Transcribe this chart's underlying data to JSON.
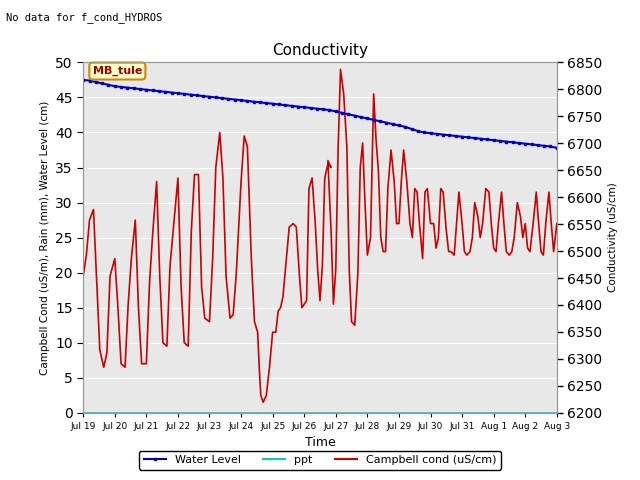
{
  "title": "Conductivity",
  "top_left_text": "No data for f_cond_HYDROS",
  "xlabel": "Time",
  "ylabel_left": "Campbell Cond (uS/m), Rain (mm), Water Level (cm)",
  "ylabel_right": "Conductivity (uS/cm)",
  "ylim_left": [
    0,
    50
  ],
  "ylim_right": [
    6200,
    6850
  ],
  "xtick_labels": [
    "Jul 19",
    "Jul 20",
    "Jul 21",
    "Jul 22",
    "Jul 23",
    "Jul 24",
    "Jul 25",
    "Jul 26",
    "Jul 27",
    "Jul 28",
    "Jul 29",
    "Jul 30",
    "Jul 31",
    "Aug 1",
    "Aug 2",
    "Aug 3"
  ],
  "annotation_box": "MB_tule",
  "annotation_box_color": "#ffffcc",
  "annotation_box_edge": "#cc8800",
  "legend_entries": [
    "Water Level",
    "ppt",
    "Campbell cond (uS/cm)"
  ],
  "legend_colors": [
    "#0000cc",
    "#00cccc",
    "#cc0000"
  ],
  "bg_color": "#e8e8e8",
  "water_level_x": [
    0,
    0.2,
    0.4,
    0.6,
    0.8,
    1.0,
    1.2,
    1.4,
    1.6,
    1.8,
    2.0,
    2.2,
    2.4,
    2.6,
    2.8,
    3.0,
    3.2,
    3.4,
    3.6,
    3.8,
    4.0,
    4.2,
    4.4,
    4.6,
    4.8,
    5.0,
    5.2,
    5.4,
    5.6,
    5.8,
    6.0,
    6.2,
    6.4,
    6.6,
    6.8,
    7.0,
    7.2,
    7.4,
    7.6,
    7.8,
    8.0,
    8.2,
    8.4,
    8.6,
    8.8,
    9.0,
    9.2,
    9.4,
    9.6,
    9.8,
    10.0,
    10.2,
    10.4,
    10.6,
    10.8,
    11.0,
    11.2,
    11.4,
    11.6,
    11.8,
    12.0,
    12.2,
    12.4,
    12.6,
    12.8,
    13.0,
    13.2,
    13.4,
    13.6,
    13.8,
    14.0,
    14.2,
    14.4,
    14.6,
    14.8,
    15.0
  ],
  "water_level_y": [
    47.5,
    47.4,
    47.2,
    47.0,
    46.8,
    46.6,
    46.5,
    46.4,
    46.3,
    46.2,
    46.1,
    46.0,
    45.9,
    45.8,
    45.7,
    45.6,
    45.5,
    45.4,
    45.3,
    45.2,
    45.1,
    45.0,
    44.9,
    44.8,
    44.7,
    44.6,
    44.5,
    44.4,
    44.3,
    44.2,
    44.1,
    44.0,
    43.9,
    43.8,
    43.7,
    43.6,
    43.5,
    43.4,
    43.3,
    43.2,
    43.0,
    42.8,
    42.6,
    42.4,
    42.2,
    42.0,
    41.8,
    41.6,
    41.4,
    41.2,
    41.0,
    40.8,
    40.5,
    40.2,
    40.0,
    39.9,
    39.8,
    39.7,
    39.6,
    39.5,
    39.4,
    39.3,
    39.2,
    39.1,
    39.0,
    38.9,
    38.8,
    38.7,
    38.6,
    38.5,
    38.4,
    38.3,
    38.2,
    38.1,
    38.0,
    37.8
  ],
  "campbell_cond_x": [
    0.0,
    0.2,
    0.4,
    0.65,
    0.85,
    1.05,
    1.3,
    1.5,
    1.7,
    2.0,
    2.2,
    2.4,
    2.65,
    2.85,
    3.05,
    3.3,
    3.5,
    3.7,
    4.0,
    4.2,
    4.4,
    4.65,
    4.85,
    5.05,
    5.3,
    5.5,
    5.7,
    6.0,
    6.2,
    6.4,
    6.65,
    6.85,
    7.05,
    7.3,
    7.5,
    7.7,
    8.0,
    8.2,
    8.4,
    8.65,
    8.85,
    9.05,
    9.3,
    9.5,
    9.7,
    10.0,
    10.2,
    10.4,
    10.65,
    10.85,
    11.05,
    11.15,
    11.25,
    11.4,
    11.6,
    11.8,
    12.0,
    12.2,
    12.35,
    12.5,
    12.65,
    12.85,
    13.05,
    13.3,
    13.5,
    13.7,
    13.85,
    14.0,
    14.15,
    14.3,
    14.5,
    14.7,
    14.85,
    15.0,
    15.15,
    15.3,
    15.5,
    15.7
  ],
  "campbell_cond_y": [
    19.5,
    22.5,
    27.5,
    29.0,
    19.0,
    9.0,
    6.5,
    8.5,
    19.5,
    22.0,
    15.0,
    7.0,
    6.5,
    15.5,
    22.0,
    27.5,
    15.0,
    7.0,
    7.0,
    18.5,
    25.5,
    33.0,
    19.5,
    10.0,
    9.5,
    21.0,
    26.0,
    33.5,
    18.0,
    10.0,
    9.5,
    26.0,
    34.0,
    34.0,
    18.0,
    13.5,
    13.0,
    22.0,
    35.0,
    40.0,
    33.5,
    19.5,
    13.5,
    14.0,
    20.0,
    33.0,
    39.5,
    38.0,
    22.0,
    13.0,
    11.5,
    6.5,
    2.5,
    1.5,
    2.5,
    6.5,
    11.5,
    11.5,
    14.5,
    15.0,
    16.5,
    21.5,
    26.5,
    27.0,
    26.5,
    19.5,
    15.0,
    15.5,
    16.0,
    32.0,
    33.5,
    27.0,
    20.5,
    16.0,
    21.0,
    33.5,
    35.5,
    35.0
  ],
  "campbell_cond_x2": [
    15.5,
    15.7,
    15.85,
    16.0,
    16.15,
    16.3,
    16.5,
    16.7,
    16.85,
    17.0,
    17.2,
    17.4,
    17.55,
    17.7,
    17.85,
    18.0,
    18.2,
    18.4,
    18.55,
    18.7,
    18.85,
    19.0,
    19.15,
    19.3,
    19.5,
    19.7,
    19.85,
    20.0,
    20.15,
    20.3,
    20.5,
    20.7,
    20.85,
    21.0,
    21.15,
    21.3,
    21.5,
    21.65,
    21.8,
    22.0,
    22.2,
    22.35,
    22.5,
    22.65,
    22.8,
    23.0,
    23.15,
    23.3,
    23.5,
    23.65,
    23.8,
    24.0,
    24.15,
    24.3,
    24.5,
    24.65,
    24.8,
    25.0,
    25.15,
    25.3,
    25.5,
    25.7,
    25.85,
    26.0,
    26.15,
    26.3,
    26.5,
    26.65,
    26.8,
    27.0,
    27.15,
    27.3,
    27.5,
    27.7,
    27.85,
    28.0,
    28.15,
    28.3,
    28.5,
    28.7,
    28.85,
    29.0,
    29.15,
    29.3,
    29.5,
    29.65,
    29.8,
    30.0
  ],
  "campbell_cond_y2": [
    36.0,
    26.0,
    15.5,
    20.5,
    38.0,
    49.0,
    45.5,
    38.0,
    20.5,
    13.0,
    12.5,
    20.0,
    35.0,
    38.5,
    30.0,
    22.5,
    25.0,
    45.5,
    39.0,
    34.5,
    25.0,
    23.0,
    23.0,
    32.0,
    37.5,
    33.0,
    27.0,
    27.0,
    33.0,
    37.5,
    33.0,
    27.0,
    25.0,
    32.0,
    31.5,
    27.0,
    22.0,
    31.5,
    32.0,
    27.0,
    27.0,
    23.5,
    25.0,
    32.0,
    31.5,
    26.0,
    23.0,
    23.0,
    22.5,
    27.0,
    31.5,
    27.0,
    23.0,
    22.5,
    23.0,
    25.0,
    30.0,
    28.0,
    25.0,
    27.0,
    32.0,
    31.5,
    27.0,
    23.5,
    23.0,
    27.0,
    31.5,
    27.0,
    23.0,
    22.5,
    23.0,
    25.0,
    30.0,
    28.0,
    25.0,
    27.0,
    23.5,
    23.0,
    27.0,
    31.5,
    27.0,
    23.0,
    22.5,
    27.0,
    31.5,
    27.0,
    23.0,
    27.0
  ]
}
